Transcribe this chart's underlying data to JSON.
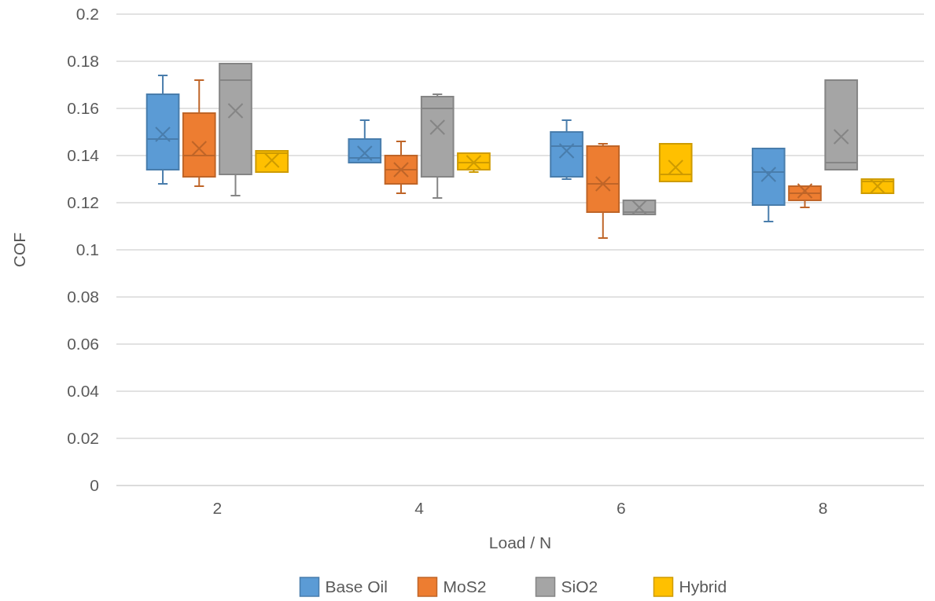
{
  "chart_data": {
    "type": "box",
    "xlabel": "Load / N",
    "ylabel": "COF",
    "categories": [
      "2",
      "4",
      "6",
      "8"
    ],
    "ylim": [
      0,
      0.2
    ],
    "yticks": [
      0,
      0.02,
      0.04,
      0.06,
      0.08,
      0.1,
      0.12,
      0.14,
      0.16,
      0.18,
      0.2
    ],
    "grid": "y",
    "legend": "bottom",
    "marker": "cross",
    "series": [
      {
        "name": "Base Oil",
        "color": "#5b9bd5",
        "boxes": [
          {
            "low": 0.128,
            "q1": 0.134,
            "median": 0.147,
            "q3": 0.166,
            "high": 0.174,
            "mean": 0.149
          },
          {
            "low": 0.137,
            "q1": 0.137,
            "median": 0.139,
            "q3": 0.147,
            "high": 0.155,
            "mean": 0.141
          },
          {
            "low": 0.13,
            "q1": 0.131,
            "median": 0.144,
            "q3": 0.15,
            "high": 0.155,
            "mean": 0.142
          },
          {
            "low": 0.112,
            "q1": 0.119,
            "median": 0.133,
            "q3": 0.143,
            "high": 0.143,
            "mean": 0.132
          }
        ]
      },
      {
        "name": "MoS2",
        "color": "#ed7d31",
        "boxes": [
          {
            "low": 0.127,
            "q1": 0.131,
            "median": 0.14,
            "q3": 0.158,
            "high": 0.172,
            "mean": 0.143
          },
          {
            "low": 0.124,
            "q1": 0.128,
            "median": 0.134,
            "q3": 0.14,
            "high": 0.146,
            "mean": 0.134
          },
          {
            "low": 0.105,
            "q1": 0.116,
            "median": 0.128,
            "q3": 0.144,
            "high": 0.145,
            "mean": 0.128
          },
          {
            "low": 0.118,
            "q1": 0.121,
            "median": 0.124,
            "q3": 0.127,
            "high": 0.127,
            "mean": 0.125
          }
        ]
      },
      {
        "name": "SiO2",
        "color": "#a5a5a5",
        "boxes": [
          {
            "low": 0.123,
            "q1": 0.132,
            "median": 0.172,
            "q3": 0.179,
            "high": 0.179,
            "mean": 0.159
          },
          {
            "low": 0.122,
            "q1": 0.131,
            "median": 0.16,
            "q3": 0.165,
            "high": 0.166,
            "mean": 0.152
          },
          {
            "low": 0.115,
            "q1": 0.115,
            "median": 0.116,
            "q3": 0.121,
            "high": 0.121,
            "mean": 0.118
          },
          {
            "low": 0.134,
            "q1": 0.134,
            "median": 0.137,
            "q3": 0.172,
            "high": 0.172,
            "mean": 0.148
          }
        ]
      },
      {
        "name": "Hybrid",
        "color": "#ffc000",
        "boxes": [
          {
            "low": 0.133,
            "q1": 0.133,
            "median": 0.141,
            "q3": 0.142,
            "high": 0.142,
            "mean": 0.138
          },
          {
            "low": 0.133,
            "q1": 0.134,
            "median": 0.137,
            "q3": 0.141,
            "high": 0.141,
            "mean": 0.137
          },
          {
            "low": 0.129,
            "q1": 0.129,
            "median": 0.132,
            "q3": 0.145,
            "high": 0.145,
            "mean": 0.135
          },
          {
            "low": 0.124,
            "q1": 0.124,
            "median": 0.129,
            "q3": 0.13,
            "high": 0.13,
            "mean": 0.127
          }
        ]
      }
    ]
  }
}
